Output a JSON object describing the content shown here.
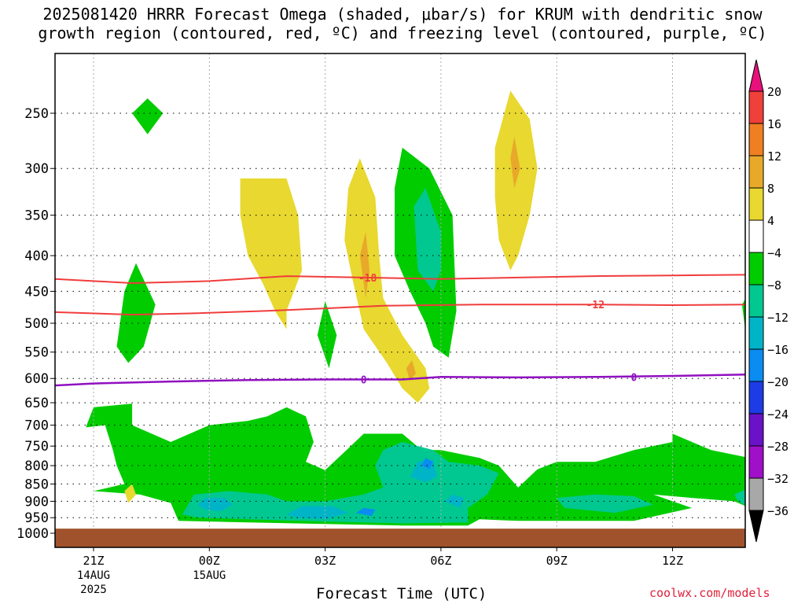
{
  "title_line1": "2025081420 HRRR Forecast Omega (shaded, μbar/s) for KRUM with dendritic snow",
  "title_line2": "growth region (contoured, red, ºC) and freezing level (contoured, purple, ºC)",
  "credit": "coolwx.com/models",
  "chart_data": {
    "type": "contour",
    "xlabel": "Forecast Time (UTC)",
    "ylabel": "",
    "y_scale": "log pressure (inverted)",
    "x_ticks": [
      {
        "hour": 1,
        "label": "21Z",
        "sub1": "14AUG",
        "sub2": "2025"
      },
      {
        "hour": 4,
        "label": "00Z",
        "sub1": "15AUG",
        "sub2": ""
      },
      {
        "hour": 7,
        "label": "03Z",
        "sub1": "",
        "sub2": ""
      },
      {
        "hour": 10,
        "label": "06Z",
        "sub1": "",
        "sub2": ""
      },
      {
        "hour": 13,
        "label": "09Z",
        "sub1": "",
        "sub2": ""
      },
      {
        "hour": 16,
        "label": "12Z",
        "sub1": "",
        "sub2": ""
      }
    ],
    "y_ticks": [
      250,
      300,
      350,
      400,
      450,
      500,
      550,
      600,
      650,
      700,
      750,
      800,
      850,
      900,
      950,
      1000
    ],
    "grid": true,
    "colorbar": {
      "labels": [
        "20",
        "16",
        "12",
        "8",
        "4",
        "−4",
        "−8",
        "−12",
        "−16",
        "−20",
        "−24",
        "−28",
        "−32",
        "−36"
      ],
      "colors": [
        "#e8107a",
        "#f0403a",
        "#f07f22",
        "#e8a92a",
        "#e8d830",
        "#ffffff",
        "#00cc00",
        "#00c890",
        "#00b4c8",
        "#0a8cf0",
        "#1e3ce6",
        "#6a12c8",
        "#a010c8",
        "#a8a8a8",
        "#000000"
      ]
    },
    "dgz_contours": [
      {
        "label": "-18",
        "points": [
          [
            0,
            432
          ],
          [
            2,
            438
          ],
          [
            4,
            435
          ],
          [
            6,
            428
          ],
          [
            8,
            430
          ],
          [
            10,
            432
          ],
          [
            12,
            430
          ],
          [
            14,
            428
          ],
          [
            16,
            427
          ],
          [
            18,
            426
          ]
        ]
      },
      {
        "label": "-12",
        "points": [
          [
            0,
            482
          ],
          [
            2,
            486
          ],
          [
            3.5,
            484
          ],
          [
            5.5,
            480
          ],
          [
            7,
            476
          ],
          [
            8.5,
            472
          ],
          [
            11,
            470
          ],
          [
            14,
            470
          ],
          [
            16,
            471
          ],
          [
            18,
            470
          ]
        ]
      }
    ],
    "freezing_level": {
      "label": "0",
      "points": [
        [
          0,
          614
        ],
        [
          1,
          610
        ],
        [
          3,
          606
        ],
        [
          5,
          603
        ],
        [
          7,
          602
        ],
        [
          9,
          602
        ],
        [
          10,
          597
        ],
        [
          12,
          598
        ],
        [
          14,
          597
        ],
        [
          16,
          595
        ],
        [
          18,
          592
        ]
      ]
    },
    "omega_regions": [
      {
        "value": "-4 to -8",
        "color": "#00cc00",
        "desc": "low level 650-980 mb broad region"
      },
      {
        "value": "-8 to -12",
        "color": "#00c890",
        "desc": "near 850-950 mb"
      },
      {
        "value": "-12 to -16",
        "color": "#00b4c8",
        "desc": "pockets near 800-930 mb"
      },
      {
        "value": "4 to 8",
        "color": "#e8d830",
        "desc": "upper-level ascent bands"
      },
      {
        "value": "8 to 12",
        "color": "#e8a92a",
        "desc": "cores of upper bands"
      }
    ],
    "ground_level_mb": 985,
    "ground_color": "#a0522d"
  }
}
